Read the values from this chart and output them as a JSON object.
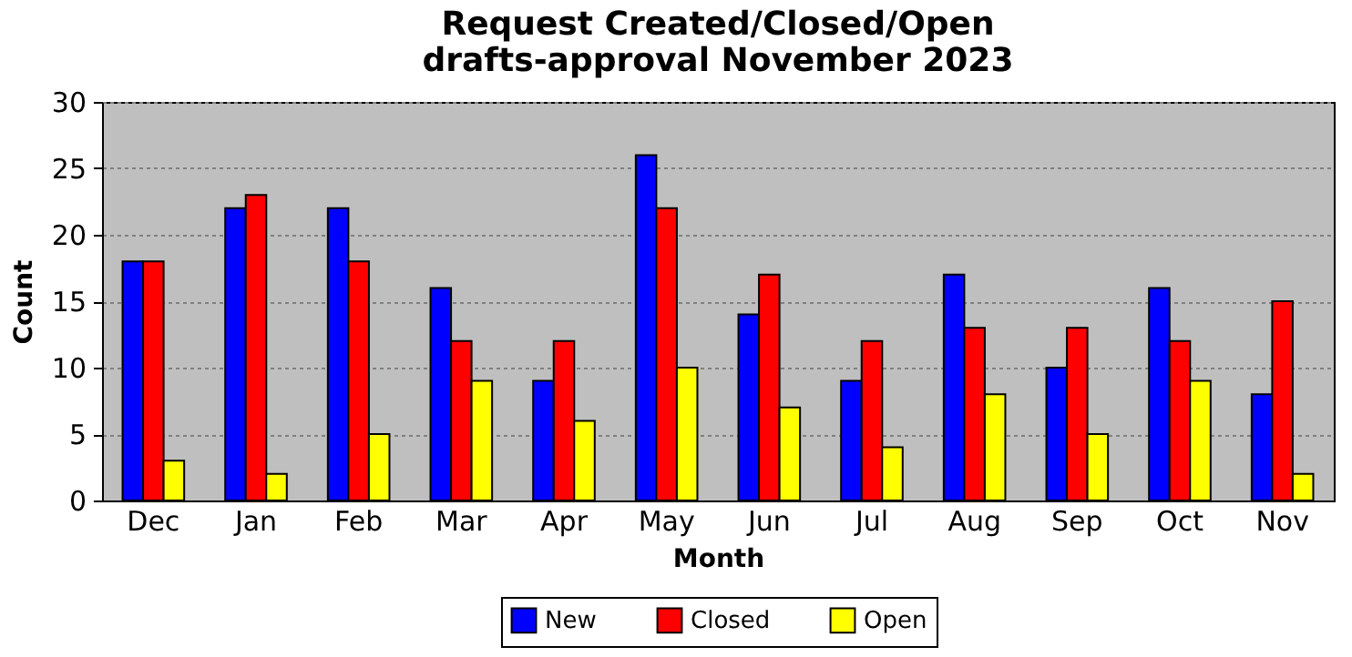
{
  "chart_data": {
    "type": "bar",
    "title": "Request Created/Closed/Open",
    "subtitle": "drafts-approval November 2023",
    "xlabel": "Month",
    "ylabel": "Count",
    "categories": [
      "Dec",
      "Jan",
      "Feb",
      "Mar",
      "Apr",
      "May",
      "Jun",
      "Jul",
      "Aug",
      "Sep",
      "Oct",
      "Nov"
    ],
    "series": [
      {
        "name": "New",
        "color": "#0000ff",
        "values": [
          18,
          22,
          22,
          16,
          9,
          26,
          14,
          9,
          17,
          10,
          16,
          8
        ]
      },
      {
        "name": "Closed",
        "color": "#ff0000",
        "values": [
          18,
          23,
          18,
          12,
          12,
          22,
          17,
          12,
          13,
          13,
          12,
          15
        ]
      },
      {
        "name": "Open",
        "color": "#ffff00",
        "values": [
          3,
          2,
          5,
          9,
          6,
          10,
          7,
          4,
          8,
          5,
          9,
          2
        ]
      }
    ],
    "ylim": [
      0,
      30
    ],
    "yticks": [
      0,
      5,
      10,
      15,
      20,
      25,
      30
    ],
    "grid": "y",
    "legend": "bottom"
  }
}
